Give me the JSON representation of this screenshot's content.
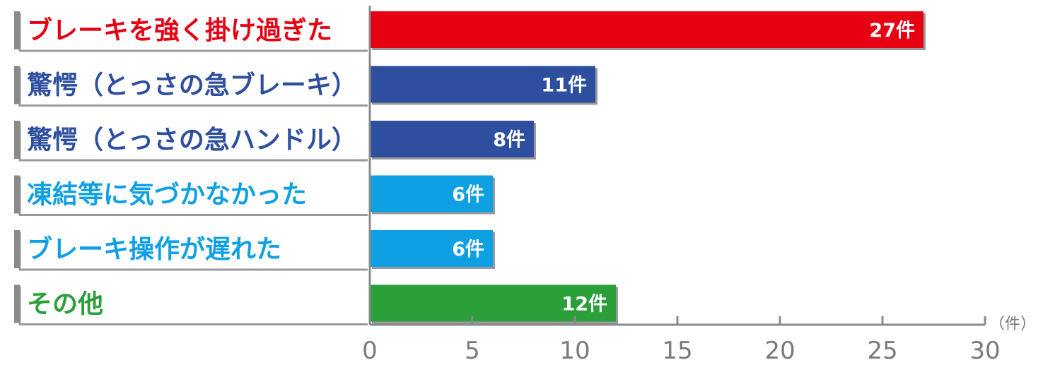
{
  "chart_data": {
    "type": "bar",
    "orientation": "horizontal",
    "categories": [
      "ブレーキを強く掛け過ぎた",
      "驚愕（とっさの急ブレーキ）",
      "驚愕（とっさの急ハンドル）",
      "凍結等に気づかなかった",
      "ブレーキ操作が遅れた",
      "その他"
    ],
    "values": [
      27,
      11,
      8,
      6,
      6,
      12
    ],
    "value_labels": [
      "27件",
      "11件",
      "8件",
      "6件",
      "6件",
      "12件"
    ],
    "colors": [
      "#e60012",
      "#2e4fa0",
      "#2e4fa0",
      "#0ea0e3",
      "#0ea0e3",
      "#2b9f3a"
    ],
    "label_colors": [
      "#e60012",
      "#2e4fa0",
      "#2e4fa0",
      "#0ea0e3",
      "#0ea0e3",
      "#2b9f3a"
    ],
    "xlim": [
      0,
      30
    ],
    "x_ticks": [
      0,
      5,
      10,
      15,
      20,
      25,
      30
    ],
    "x_tick_labels": [
      "0",
      "5",
      "10",
      "15",
      "20",
      "25",
      "30"
    ],
    "x_unit": "（件）",
    "grid": false
  }
}
